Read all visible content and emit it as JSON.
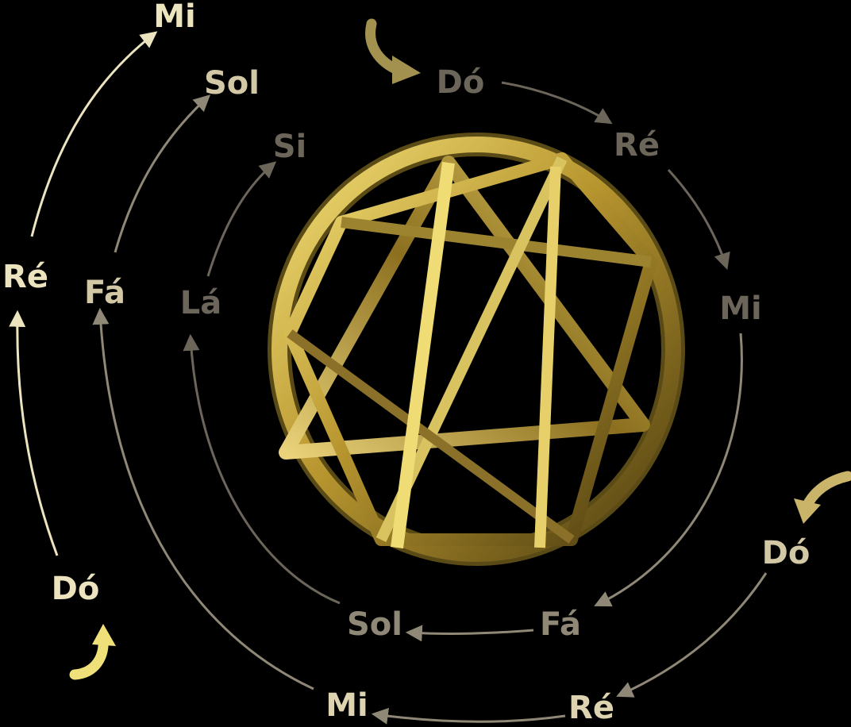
{
  "colors": {
    "background": "#000000",
    "bright": "#ece3bf",
    "grey": "#8f8876",
    "dim": "#6b655a",
    "gold_light": "#f3df78",
    "gold_mid": "#b8962f",
    "gold_dark": "#4d3d10"
  },
  "octaves": {
    "outer": {
      "notes": [
        "Dó",
        "Ré",
        "Mi"
      ]
    },
    "middle": {
      "notes": [
        "Mi",
        "Fá",
        "Sol"
      ]
    },
    "inner": {
      "notes": [
        "Sol",
        "Lá",
        "Si"
      ]
    },
    "right": {
      "notes": [
        "Dó",
        "Ré",
        "Mi",
        "Fá"
      ]
    },
    "bottom_right": {
      "notes": [
        "Dó",
        "Ré"
      ]
    }
  },
  "icons": [
    "curved-shock-arrow-icon",
    "enneagram-figure"
  ]
}
